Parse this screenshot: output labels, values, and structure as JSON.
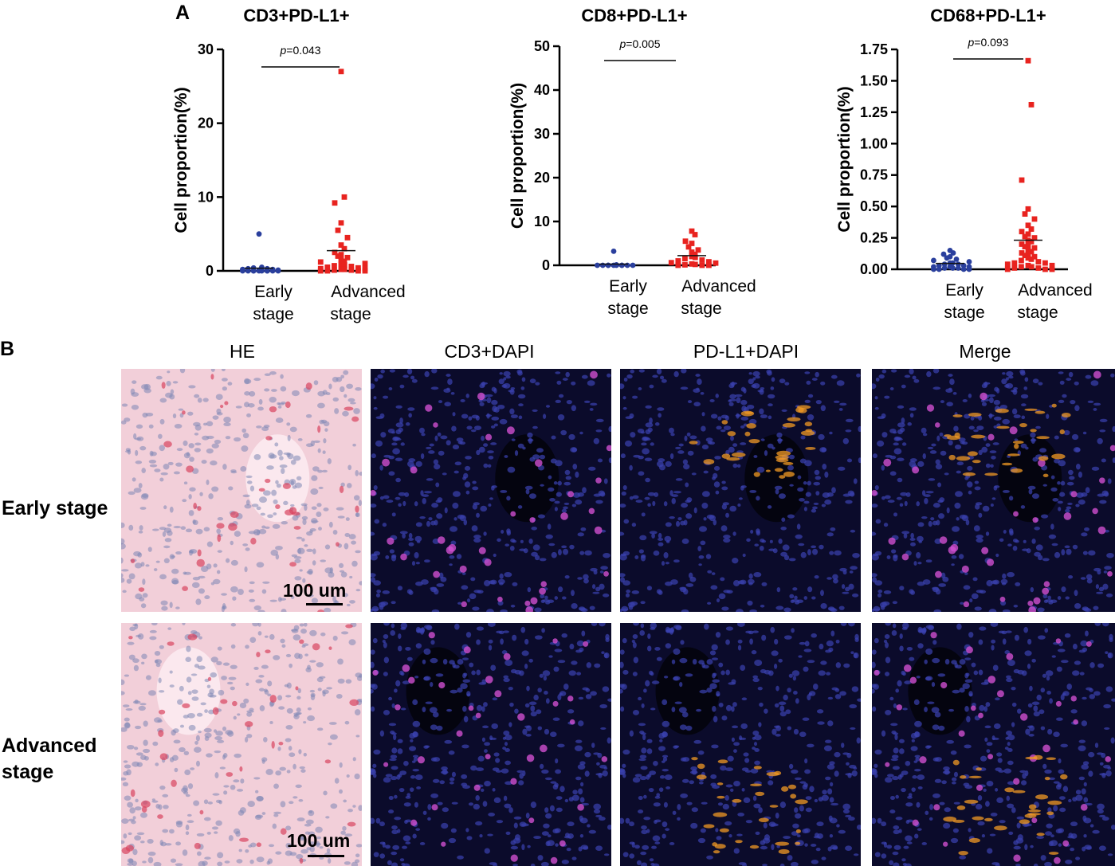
{
  "panel_a_label": "A",
  "panel_b_label": "B",
  "chart_data": [
    {
      "type": "scatter",
      "title": "CD3+PD-L1+",
      "ylabel": "Cell proportion(%)",
      "ylim": [
        0,
        30
      ],
      "yticks": [
        "0",
        "10",
        "20",
        "30"
      ],
      "categories": [
        "Early stage",
        "Advanced stage"
      ],
      "p_value": "=0.043",
      "p_symbol": "p",
      "series": [
        {
          "category": "Early stage",
          "color": "#2a3f9d",
          "values": [
            5.0,
            0.5,
            0.4,
            0.3,
            0.3,
            0.2,
            0.2,
            0.1,
            0.1,
            0.1,
            0.0,
            0.0,
            0.0,
            0.0,
            0.0,
            0.0,
            0.0,
            0.0,
            0.0,
            0.0
          ]
        },
        {
          "category": "Advanced stage",
          "color": "#e8231f",
          "values": [
            27.0,
            10.0,
            9.2,
            6.5,
            5.5,
            4.5,
            3.5,
            3.0,
            2.5,
            2.2,
            2.0,
            1.8,
            1.5,
            1.3,
            1.2,
            1.0,
            0.9,
            0.8,
            0.7,
            0.6,
            0.5,
            0.4,
            0.3,
            0.3,
            0.2,
            0.2,
            0.1,
            0.1,
            0.0,
            0.0,
            0.0,
            0.0
          ]
        }
      ]
    },
    {
      "type": "scatter",
      "title": "CD8+PD-L1+",
      "ylabel": "Cell proportion(%)",
      "ylim": [
        0,
        50
      ],
      "yticks": [
        "0",
        "10",
        "20",
        "30",
        "40",
        "50"
      ],
      "categories": [
        "Early stage",
        "Advanced stage"
      ],
      "p_value": "=0.005",
      "p_symbol": "p",
      "series": [
        {
          "category": "Early stage",
          "color": "#2a3f9d",
          "values": [
            3.2,
            0.1,
            0.0,
            0.0,
            0.0,
            0.0,
            0.0,
            0.0,
            0.0,
            0.0,
            0.0,
            0.0
          ]
        },
        {
          "category": "Advanced stage",
          "color": "#e8231f",
          "values": [
            7.8,
            7.0,
            5.5,
            5.0,
            4.2,
            3.5,
            3.0,
            2.5,
            2.0,
            1.8,
            1.5,
            1.2,
            1.0,
            0.8,
            0.6,
            0.5,
            0.3,
            0.2,
            0.1,
            0.0,
            0.0,
            0.0
          ]
        }
      ]
    },
    {
      "type": "scatter",
      "title": "CD68+PD-L1+",
      "ylabel": "Cell proportion(%)",
      "ylim": [
        0,
        1.75
      ],
      "yticks": [
        "0.00",
        "0.25",
        "0.50",
        "0.75",
        "1.00",
        "1.25",
        "1.50",
        "1.75"
      ],
      "categories": [
        "Early stage",
        "Advanced stage"
      ],
      "p_value": "=0.093",
      "p_symbol": "p",
      "series": [
        {
          "category": "Early stage",
          "color": "#2a3f9d",
          "values": [
            0.15,
            0.13,
            0.12,
            0.1,
            0.09,
            0.08,
            0.07,
            0.06,
            0.05,
            0.05,
            0.04,
            0.04,
            0.03,
            0.03,
            0.02,
            0.02,
            0.02,
            0.01,
            0.01,
            0.01,
            0.0,
            0.0,
            0.0,
            0.0
          ]
        },
        {
          "category": "Advanced stage",
          "color": "#e8231f",
          "values": [
            1.66,
            1.31,
            0.71,
            0.48,
            0.44,
            0.4,
            0.35,
            0.32,
            0.3,
            0.28,
            0.26,
            0.25,
            0.23,
            0.22,
            0.2,
            0.19,
            0.18,
            0.17,
            0.15,
            0.14,
            0.13,
            0.12,
            0.11,
            0.1,
            0.09,
            0.08,
            0.07,
            0.06,
            0.05,
            0.05,
            0.04,
            0.03,
            0.03,
            0.02,
            0.02,
            0.01,
            0.01,
            0.0,
            0.0,
            0.0
          ]
        }
      ]
    }
  ],
  "panel_b": {
    "columns": [
      "HE",
      "CD3+DAPI",
      "PD-L1+DAPI",
      "Merge"
    ],
    "rows": [
      "Early stage",
      "Advanced stage"
    ],
    "scale_bar": "100 um",
    "colors": {
      "he_bg": "#f2cfd9",
      "he_nucleus": "#7d86b5",
      "he_red": "#d9445f",
      "fluor_bg": "#0b0b2b",
      "dapi": "#3b42b0",
      "cd3": "#d04fcf",
      "pdl1": "#f29a24"
    }
  }
}
